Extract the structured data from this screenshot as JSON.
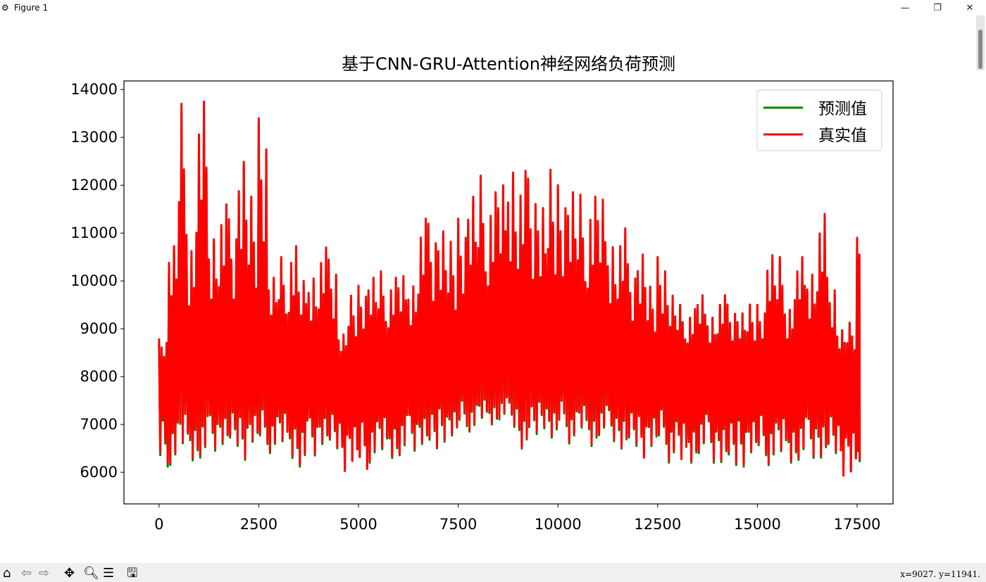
{
  "window": {
    "title": "Figure 1",
    "minimize": "—",
    "maximize": "❐",
    "close": "✕"
  },
  "toolbar": {
    "icons": [
      "home-icon",
      "back-icon",
      "forward-icon",
      "pan-icon",
      "zoom-icon",
      "configure-subplots-icon",
      "save-icon"
    ],
    "status": "x=9027.  y=11941."
  },
  "chart_data": {
    "type": "line",
    "title": "基于CNN-GRU-Attention神经网络负荷预测",
    "xlabel": "",
    "ylabel": "",
    "xlim": [
      -880,
      18400
    ],
    "ylim": [
      5340,
      14180
    ],
    "xticks": [
      0,
      2500,
      5000,
      7500,
      10000,
      12500,
      15000,
      17500
    ],
    "yticks": [
      6000,
      7000,
      8000,
      9000,
      10000,
      11000,
      12000,
      13000,
      14000
    ],
    "grid": false,
    "legend": "top-right",
    "note_x_step": 250,
    "x": [
      0,
      250,
      500,
      750,
      1000,
      1250,
      1500,
      1750,
      2000,
      2250,
      2500,
      2750,
      3000,
      3250,
      3500,
      3750,
      4000,
      4250,
      4500,
      4750,
      5000,
      5250,
      5500,
      5750,
      6000,
      6250,
      6500,
      6750,
      7000,
      7250,
      7500,
      7750,
      8000,
      8250,
      8500,
      8750,
      9000,
      9250,
      9500,
      9750,
      10000,
      10250,
      10500,
      10750,
      11000,
      11250,
      11500,
      11750,
      12000,
      12250,
      12500,
      12750,
      13000,
      13250,
      13500,
      13750,
      14000,
      14250,
      14500,
      14750,
      15000,
      15250,
      15500,
      15750,
      16000,
      16250,
      16500,
      16750,
      17000,
      17250,
      17500
    ],
    "series": [
      {
        "name": "预测值",
        "color": "#008000",
        "max": [
          8700,
          10800,
          13500,
          11100,
          13600,
          11400,
          11500,
          11400,
          13000,
          11900,
          13300,
          10100,
          10400,
          10800,
          9900,
          10400,
          10600,
          10500,
          8900,
          9700,
          9800,
          10100,
          10100,
          10100,
          10000,
          10200,
          11200,
          11300,
          11400,
          10900,
          11200,
          11900,
          12100,
          12000,
          11900,
          13100,
          12200,
          12300,
          11900,
          12500,
          11900,
          12000,
          11700,
          11900,
          11600,
          11200,
          11000,
          10400,
          10800,
          9900,
          10400,
          9700,
          9500,
          9500,
          9700,
          9500,
          9700,
          9600,
          9500,
          9600,
          9500,
          10600,
          10400,
          9700,
          10400,
          10500,
          11300,
          10100,
          9100,
          9200,
          10800
        ],
        "min": [
          6000,
          6150,
          6300,
          6250,
          6200,
          6450,
          6500,
          6550,
          6150,
          6450,
          6500,
          6400,
          6350,
          6300,
          6000,
          6350,
          6500,
          6500,
          5950,
          6000,
          5950,
          6200,
          6150,
          6300,
          6250,
          6450,
          6500,
          6500,
          6550,
          6600,
          6900,
          6850,
          6950,
          7000,
          7050,
          6950,
          6400,
          6800,
          6850,
          6550,
          6900,
          6600,
          6700,
          6550,
          6700,
          6650,
          6400,
          6550,
          6300,
          6350,
          6500,
          6200,
          5950,
          6200,
          6300,
          6200,
          6100,
          6150,
          6000,
          6200,
          6250,
          6150,
          6100,
          6200,
          6150,
          6300,
          6200,
          6400,
          6000,
          5750,
          6100
        ]
      },
      {
        "name": "真实值",
        "color": "#ff0000",
        "max": [
          8800,
          10900,
          13700,
          11200,
          13750,
          11500,
          11600,
          11500,
          13100,
          12000,
          13400,
          10200,
          10500,
          10900,
          10000,
          10500,
          10700,
          10600,
          9000,
          9800,
          9900,
          10200,
          10200,
          10200,
          10100,
          10300,
          11300,
          11400,
          11450,
          11000,
          11300,
          12000,
          12200,
          12100,
          12000,
          13200,
          12300,
          12400,
          12000,
          12600,
          12000,
          12100,
          11800,
          12000,
          11700,
          11300,
          11100,
          10500,
          10900,
          10000,
          10500,
          9800,
          9500,
          9500,
          9700,
          9500,
          9700,
          9600,
          9500,
          9600,
          9500,
          10700,
          10500,
          9700,
          10500,
          10600,
          11400,
          10200,
          9100,
          9200,
          10900
        ],
        "min": [
          6100,
          6200,
          6350,
          6300,
          6250,
          6500,
          6550,
          6600,
          6200,
          6500,
          6550,
          6450,
          6400,
          6350,
          6050,
          6400,
          6550,
          6550,
          5900,
          6000,
          5950,
          6250,
          6200,
          6350,
          6300,
          6500,
          6550,
          6550,
          6600,
          6650,
          6950,
          6900,
          7000,
          7050,
          7100,
          7000,
          6450,
          6850,
          6900,
          6600,
          6950,
          6650,
          6750,
          6600,
          6750,
          6700,
          6450,
          6600,
          6200,
          6400,
          6550,
          6250,
          5900,
          6250,
          6350,
          6250,
          6150,
          6200,
          6050,
          6250,
          6300,
          6200,
          6150,
          6250,
          6200,
          6350,
          6250,
          6450,
          5800,
          5750,
          6150
        ]
      }
    ]
  }
}
